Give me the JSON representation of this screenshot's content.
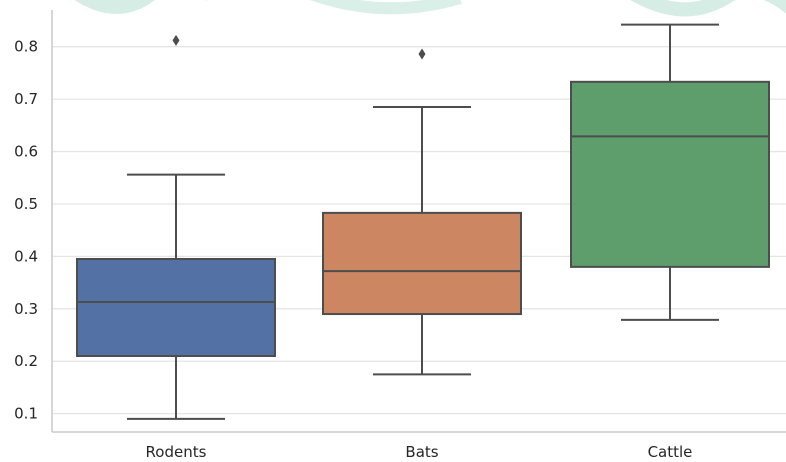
{
  "chart_data": {
    "type": "box",
    "title": "",
    "xlabel": "",
    "ylabel": "",
    "categories": [
      "Rodents",
      "Bats",
      "Cattle"
    ],
    "y_ticks": [
      "0.1",
      "0.2",
      "0.3",
      "0.4",
      "0.5",
      "0.6",
      "0.7",
      "0.8"
    ],
    "ylim": [
      0.065,
      0.87
    ],
    "grid": "horizontal",
    "boxes": [
      {
        "category": "Rodents",
        "whisker_low": 0.09,
        "q1": 0.21,
        "median": 0.313,
        "q3": 0.395,
        "whisker_high": 0.556,
        "outliers": [
          0.812
        ],
        "color": "#5471a6"
      },
      {
        "category": "Bats",
        "whisker_low": 0.175,
        "q1": 0.29,
        "median": 0.372,
        "q3": 0.483,
        "whisker_high": 0.685,
        "outliers": [
          0.786
        ],
        "color": "#cc8762"
      },
      {
        "category": "Cattle",
        "whisker_low": 0.279,
        "q1": 0.38,
        "median": 0.629,
        "q3": 0.733,
        "whisker_high": 0.842,
        "outliers": [],
        "color": "#5d9e6c"
      }
    ],
    "colors": {
      "grid": "#e5e5e5",
      "axis": "#cccccc",
      "line": "#4d4d4d",
      "decor": "#b5dfd2"
    }
  }
}
